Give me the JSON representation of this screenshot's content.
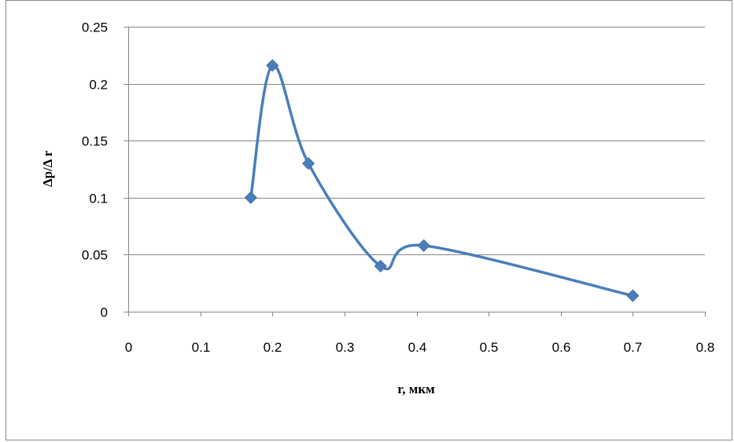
{
  "chart_data": {
    "type": "line",
    "title": "",
    "xlabel": "r, мкм",
    "ylabel": "Δp/Δ r",
    "xlim": [
      0,
      0.8
    ],
    "ylim": [
      0,
      0.25
    ],
    "x_ticks": [
      0,
      0.1,
      0.2,
      0.3,
      0.4,
      0.5,
      0.6,
      0.7,
      0.8
    ],
    "x_tick_labels": [
      "0",
      "0.1",
      "0.2",
      "0.3",
      "0.4",
      "0.5",
      "0.6",
      "0.7",
      "0.8"
    ],
    "y_ticks": [
      0,
      0.05,
      0.1,
      0.15,
      0.2,
      0.25
    ],
    "y_tick_labels": [
      "0",
      "0.05",
      "0.1",
      "0.15",
      "0.2",
      "0.25"
    ],
    "grid": "horizontal",
    "legend": "none",
    "smooth": true,
    "marker": "diamond",
    "series_color": "#4a7ebb",
    "gridline_color": "#868686",
    "series": [
      {
        "x": [
          0.17,
          0.2,
          0.25,
          0.35,
          0.41,
          0.7
        ],
        "y": [
          0.1,
          0.216,
          0.13,
          0.04,
          0.058,
          0.014
        ]
      }
    ]
  }
}
